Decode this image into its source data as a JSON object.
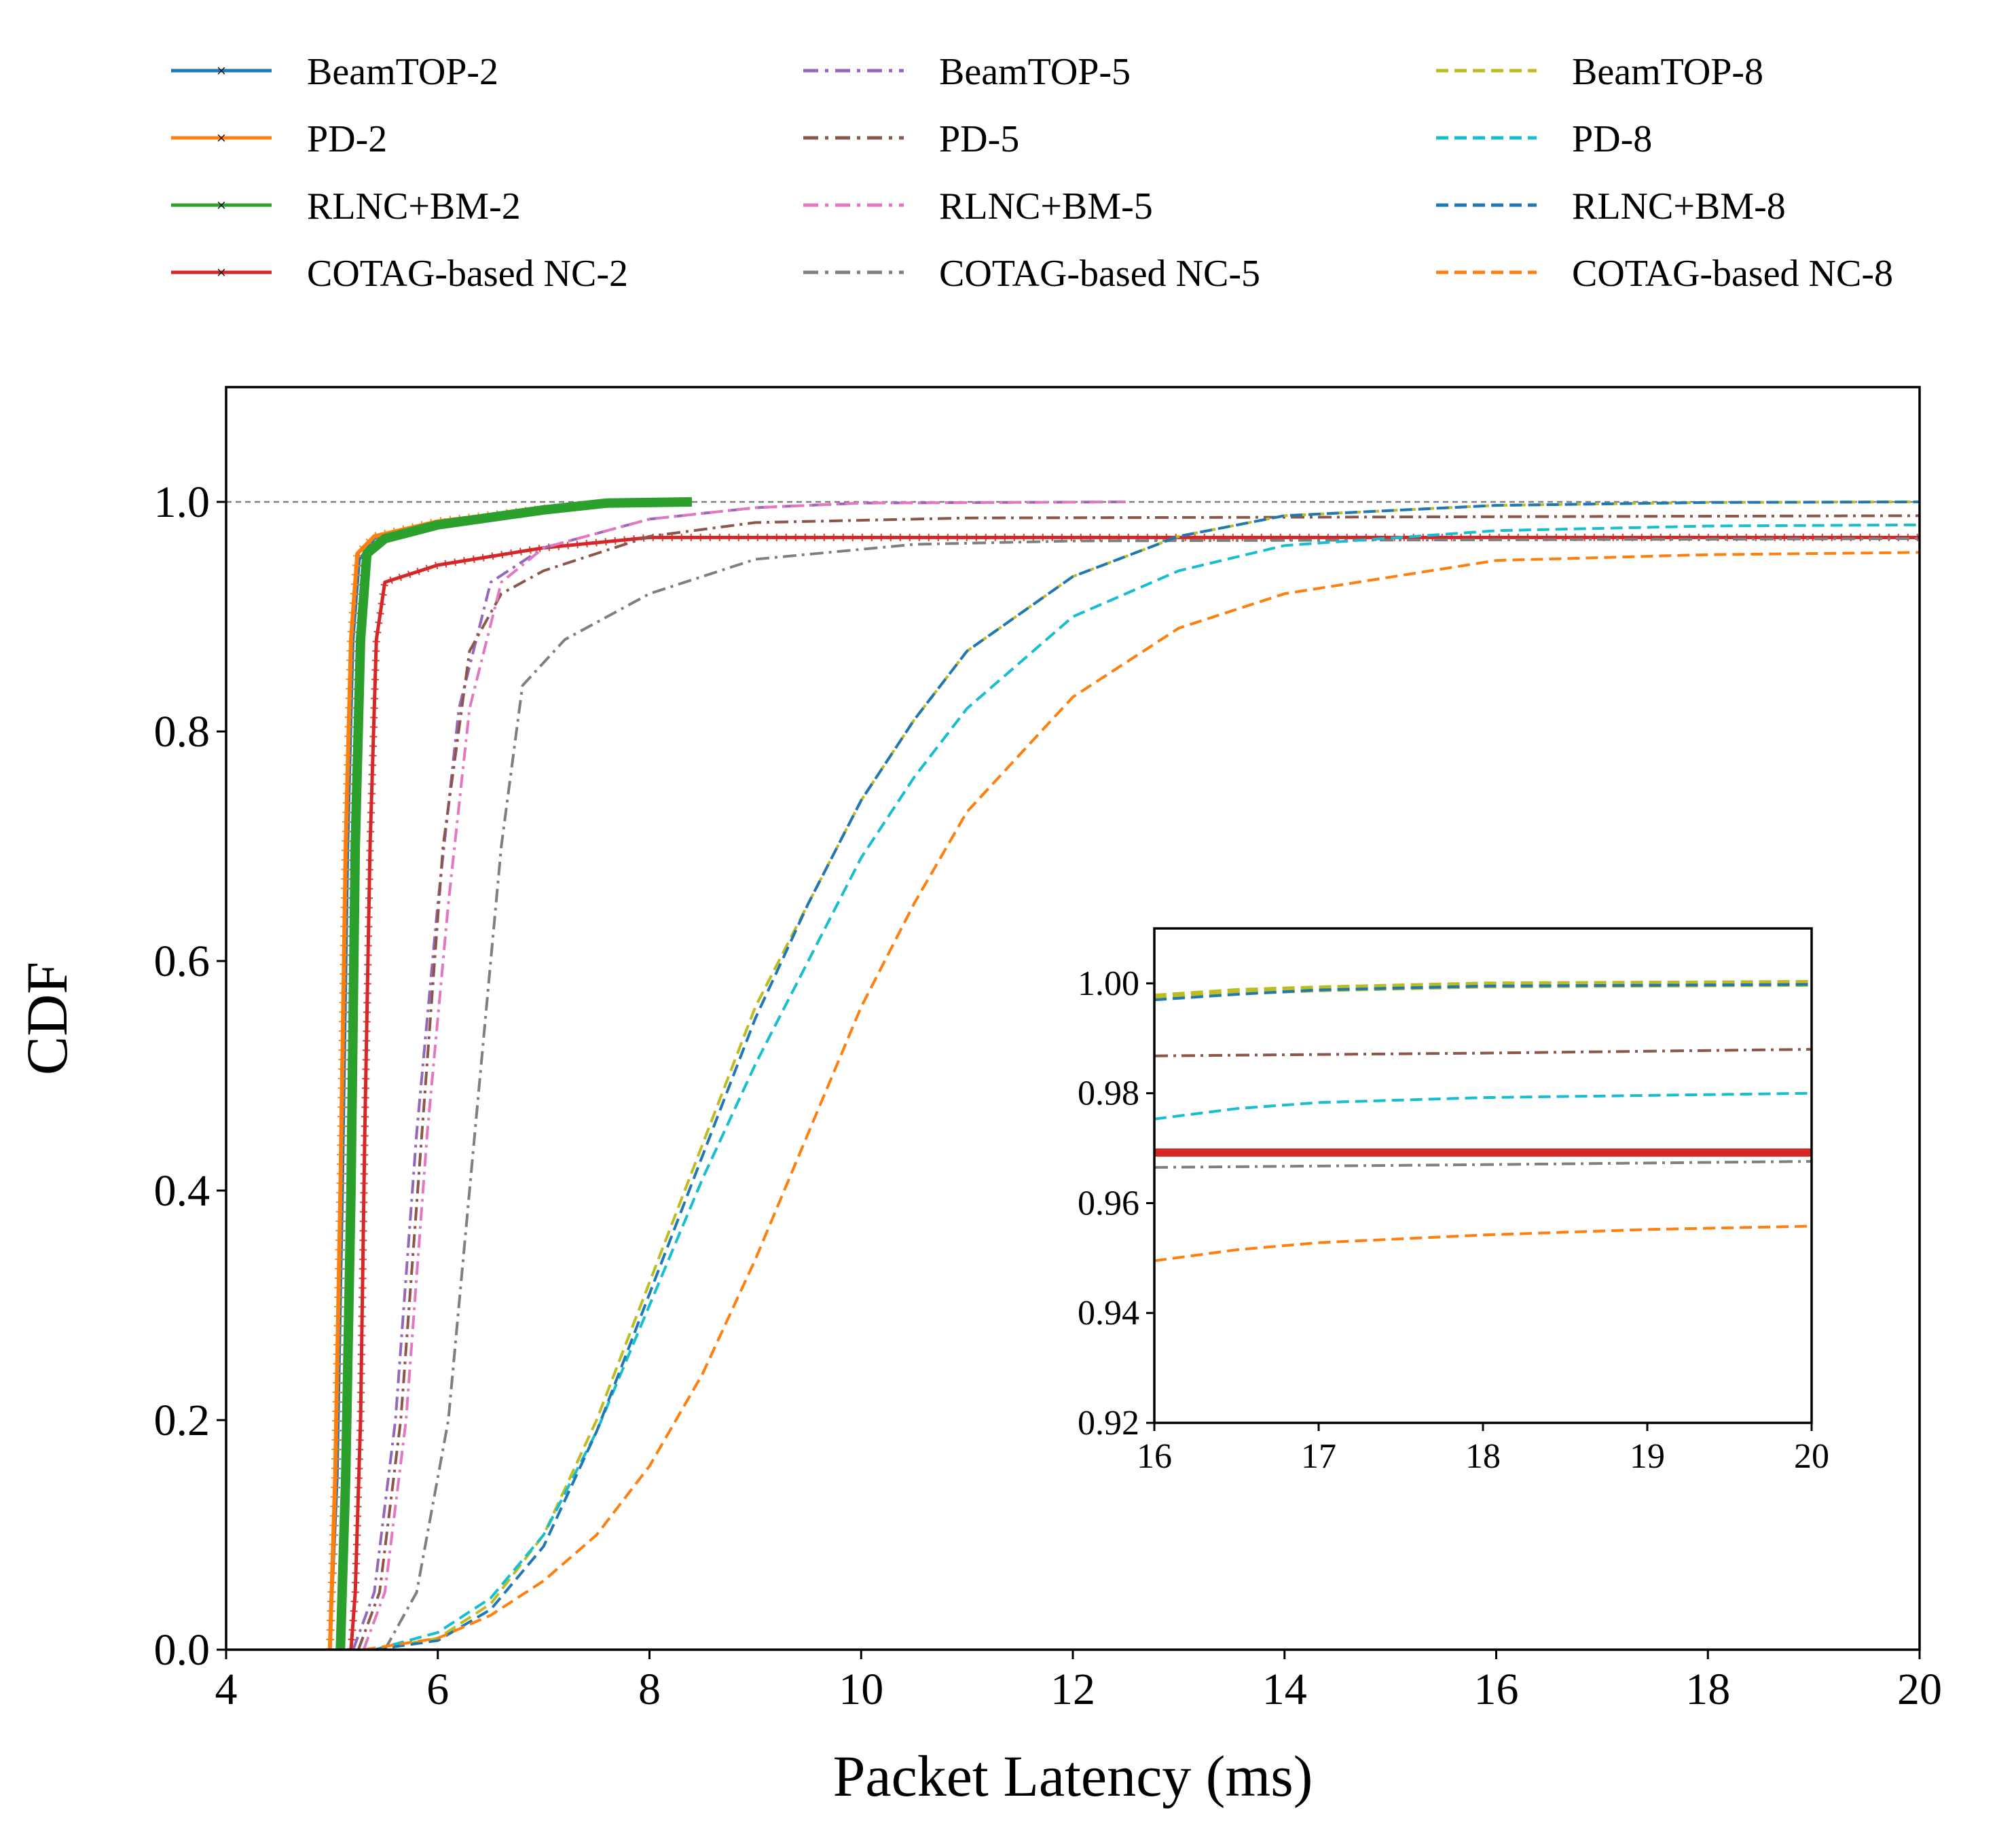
{
  "chart_data": [
    {
      "type": "line",
      "title": "",
      "xlabel": "Packet Latency (ms)",
      "ylabel": "CDF",
      "xlim": [
        4,
        20
      ],
      "ylim": [
        0,
        1.1
      ],
      "xticks": [
        4,
        6,
        8,
        10,
        12,
        14,
        16,
        18,
        20
      ],
      "yticks": [
        0.0,
        0.2,
        0.4,
        0.6,
        0.8,
        1.0
      ],
      "reference_line": {
        "y": 1.0,
        "style": "dashed",
        "color": "#808080"
      },
      "grid": false,
      "legend_position": "top, above plot, 3 columns",
      "series": [
        {
          "name": "BeamTOP-2",
          "color": "#1f77b4",
          "style": "solid-marker",
          "width": 4,
          "points": [
            [
              4.98,
              0
            ],
            [
              5.05,
              0.15
            ],
            [
              5.1,
              0.4
            ],
            [
              5.15,
              0.7
            ],
            [
              5.2,
              0.88
            ],
            [
              5.26,
              0.95
            ],
            [
              5.4,
              0.968
            ],
            [
              6,
              0.982
            ],
            [
              7,
              0.993
            ],
            [
              7.6,
              0.999
            ],
            [
              8.4,
              1.0
            ]
          ]
        },
        {
          "name": "PD-2",
          "color": "#ff7f0e",
          "style": "solid-marker",
          "width": 6,
          "points": [
            [
              4.98,
              0
            ],
            [
              5.03,
              0.15
            ],
            [
              5.08,
              0.4
            ],
            [
              5.13,
              0.7
            ],
            [
              5.18,
              0.88
            ],
            [
              5.24,
              0.955
            ],
            [
              5.4,
              0.97
            ],
            [
              6,
              0.983
            ],
            [
              7,
              0.994
            ],
            [
              7.6,
              0.999
            ],
            [
              8.4,
              1.0
            ]
          ]
        },
        {
          "name": "RLNC+BM-2",
          "color": "#2ca02c",
          "style": "solid-marker",
          "width": 14,
          "points": [
            [
              5.08,
              0
            ],
            [
              5.13,
              0.15
            ],
            [
              5.18,
              0.4
            ],
            [
              5.22,
              0.7
            ],
            [
              5.27,
              0.88
            ],
            [
              5.33,
              0.955
            ],
            [
              5.5,
              0.968
            ],
            [
              6,
              0.98
            ],
            [
              7,
              0.993
            ],
            [
              7.6,
              0.999
            ],
            [
              8.4,
              1.0
            ]
          ]
        },
        {
          "name": "COTAG-based NC-2",
          "color": "#d62728",
          "style": "solid-marker",
          "width": 5,
          "points": [
            [
              5.18,
              0
            ],
            [
              5.22,
              0.05
            ],
            [
              5.27,
              0.2
            ],
            [
              5.31,
              0.45
            ],
            [
              5.36,
              0.7
            ],
            [
              5.42,
              0.88
            ],
            [
              5.5,
              0.93
            ],
            [
              6,
              0.945
            ],
            [
              7,
              0.96
            ],
            [
              8,
              0.969
            ],
            [
              20,
              0.969
            ]
          ]
        },
        {
          "name": "BeamTOP-5",
          "color": "#9467bd",
          "style": "dashdot",
          "width": 4,
          "points": [
            [
              5.2,
              0
            ],
            [
              5.4,
              0.05
            ],
            [
              5.6,
              0.2
            ],
            [
              5.8,
              0.45
            ],
            [
              6.0,
              0.65
            ],
            [
              6.2,
              0.82
            ],
            [
              6.5,
              0.93
            ],
            [
              7,
              0.96
            ],
            [
              8,
              0.985
            ],
            [
              9,
              0.995
            ],
            [
              10,
              0.999
            ],
            [
              12.5,
              1.0
            ]
          ]
        },
        {
          "name": "PD-5",
          "color": "#8c564b",
          "style": "dashdot",
          "width": 4,
          "points": [
            [
              5.25,
              0
            ],
            [
              5.45,
              0.05
            ],
            [
              5.65,
              0.2
            ],
            [
              5.85,
              0.45
            ],
            [
              6.05,
              0.7
            ],
            [
              6.3,
              0.87
            ],
            [
              6.6,
              0.92
            ],
            [
              7,
              0.94
            ],
            [
              8,
              0.97
            ],
            [
              9,
              0.982
            ],
            [
              11,
              0.986
            ],
            [
              20,
              0.988
            ]
          ]
        },
        {
          "name": "RLNC+BM-5",
          "color": "#e377c2",
          "style": "dashdot",
          "width": 4,
          "points": [
            [
              5.3,
              0
            ],
            [
              5.5,
              0.05
            ],
            [
              5.7,
              0.2
            ],
            [
              5.9,
              0.45
            ],
            [
              6.1,
              0.65
            ],
            [
              6.3,
              0.82
            ],
            [
              6.6,
              0.93
            ],
            [
              7,
              0.96
            ],
            [
              8,
              0.985
            ],
            [
              9,
              0.995
            ],
            [
              10,
              0.999
            ],
            [
              12.5,
              1.0
            ]
          ]
        },
        {
          "name": "COTAG-based NC-5",
          "color": "#7f7f7f",
          "style": "dashdot",
          "width": 4,
          "points": [
            [
              5.5,
              0
            ],
            [
              5.8,
              0.05
            ],
            [
              6.1,
              0.2
            ],
            [
              6.35,
              0.45
            ],
            [
              6.6,
              0.7
            ],
            [
              6.8,
              0.84
            ],
            [
              7.2,
              0.88
            ],
            [
              8,
              0.92
            ],
            [
              9,
              0.95
            ],
            [
              10.5,
              0.963
            ],
            [
              12,
              0.966
            ],
            [
              20,
              0.968
            ]
          ]
        },
        {
          "name": "BeamTOP-8",
          "color": "#bcbd22",
          "style": "dashed",
          "width": 4,
          "points": [
            [
              5.4,
              0
            ],
            [
              6,
              0.01
            ],
            [
              6.5,
              0.04
            ],
            [
              7,
              0.1
            ],
            [
              7.5,
              0.2
            ],
            [
              8,
              0.32
            ],
            [
              8.5,
              0.44
            ],
            [
              9,
              0.56
            ],
            [
              9.5,
              0.65
            ],
            [
              10,
              0.74
            ],
            [
              10.5,
              0.81
            ],
            [
              11,
              0.87
            ],
            [
              12,
              0.935
            ],
            [
              13,
              0.97
            ],
            [
              14,
              0.988
            ],
            [
              16,
              0.997
            ],
            [
              18,
              0.9995
            ],
            [
              20,
              1.0
            ]
          ]
        },
        {
          "name": "PD-8",
          "color": "#17becf",
          "style": "dashed",
          "width": 4,
          "points": [
            [
              5.4,
              0
            ],
            [
              6,
              0.015
            ],
            [
              6.5,
              0.045
            ],
            [
              7,
              0.1
            ],
            [
              7.5,
              0.19
            ],
            [
              8,
              0.3
            ],
            [
              8.5,
              0.41
            ],
            [
              9,
              0.51
            ],
            [
              9.5,
              0.6
            ],
            [
              10,
              0.69
            ],
            [
              10.5,
              0.76
            ],
            [
              11,
              0.82
            ],
            [
              12,
              0.9
            ],
            [
              13,
              0.94
            ],
            [
              14,
              0.962
            ],
            [
              16,
              0.975
            ],
            [
              18,
              0.979
            ],
            [
              20,
              0.98
            ]
          ]
        },
        {
          "name": "RLNC+BM-8",
          "color": "#1f77b4",
          "style": "dashed",
          "width": 4,
          "points": [
            [
              5.4,
              0
            ],
            [
              6,
              0.008
            ],
            [
              6.5,
              0.035
            ],
            [
              7,
              0.09
            ],
            [
              7.5,
              0.19
            ],
            [
              8,
              0.31
            ],
            [
              8.5,
              0.43
            ],
            [
              9,
              0.55
            ],
            [
              9.5,
              0.65
            ],
            [
              10,
              0.74
            ],
            [
              10.5,
              0.81
            ],
            [
              11,
              0.87
            ],
            [
              12,
              0.935
            ],
            [
              13,
              0.97
            ],
            [
              14,
              0.988
            ],
            [
              16,
              0.997
            ],
            [
              18,
              0.9995
            ],
            [
              20,
              1.0
            ]
          ]
        },
        {
          "name": "COTAG-based NC-8",
          "color": "#ff7f0e",
          "style": "dashed",
          "width": 4,
          "points": [
            [
              5.3,
              0
            ],
            [
              6,
              0.01
            ],
            [
              6.5,
              0.03
            ],
            [
              7,
              0.06
            ],
            [
              7.5,
              0.1
            ],
            [
              8,
              0.16
            ],
            [
              8.5,
              0.24
            ],
            [
              9,
              0.34
            ],
            [
              9.5,
              0.45
            ],
            [
              10,
              0.56
            ],
            [
              10.5,
              0.65
            ],
            [
              11,
              0.73
            ],
            [
              12,
              0.83
            ],
            [
              13,
              0.89
            ],
            [
              14,
              0.92
            ],
            [
              16,
              0.949
            ],
            [
              18,
              0.954
            ],
            [
              20,
              0.956
            ]
          ]
        }
      ]
    },
    {
      "type": "line",
      "title": "",
      "xlabel": "",
      "ylabel": "",
      "xlim": [
        16,
        20
      ],
      "ylim": [
        0.92,
        1.01
      ],
      "xticks": [
        16,
        17,
        18,
        19,
        20
      ],
      "yticks": [
        0.92,
        0.94,
        0.96,
        0.98,
        1.0
      ],
      "ytick_labels": [
        "0.92",
        "0.94",
        "0.96",
        "0.98",
        "1.00"
      ],
      "grid": false,
      "series": [
        {
          "name": "BeamTOP-8",
          "color": "#bcbd22",
          "style": "dashed",
          "width": 10,
          "points": [
            [
              16,
              0.9975
            ],
            [
              16.5,
              0.9985
            ],
            [
              17,
              0.999
            ],
            [
              18,
              0.9997
            ],
            [
              20,
              1.0
            ]
          ]
        },
        {
          "name": "RLNC+BM-8",
          "color": "#1f77b4",
          "style": "dashed",
          "width": 4,
          "points": [
            [
              16,
              0.997
            ],
            [
              16.5,
              0.998
            ],
            [
              17,
              0.9988
            ],
            [
              18,
              0.9995
            ],
            [
              20,
              0.9998
            ]
          ]
        },
        {
          "name": "PD-5",
          "color": "#8c564b",
          "style": "dashdot",
          "width": 4,
          "points": [
            [
              16,
              0.9868
            ],
            [
              18,
              0.9873
            ],
            [
              20,
              0.988
            ]
          ]
        },
        {
          "name": "PD-8",
          "color": "#17becf",
          "style": "dashed",
          "width": 4,
          "points": [
            [
              16,
              0.9753
            ],
            [
              16.5,
              0.9772
            ],
            [
              17,
              0.9783
            ],
            [
              18,
              0.9792
            ],
            [
              19,
              0.9796
            ],
            [
              20,
              0.98
            ]
          ]
        },
        {
          "name": "COTAG-based NC-2",
          "color": "#d62728",
          "style": "solid-marker",
          "width": 12,
          "points": [
            [
              16,
              0.9692
            ],
            [
              20,
              0.9692
            ]
          ]
        },
        {
          "name": "COTAG-based NC-5",
          "color": "#7f7f7f",
          "style": "dashdot",
          "width": 4,
          "points": [
            [
              16,
              0.9665
            ],
            [
              18,
              0.967
            ],
            [
              20,
              0.9676
            ]
          ]
        },
        {
          "name": "COTAG-based NC-8",
          "color": "#ff7f0e",
          "style": "dashed",
          "width": 4,
          "points": [
            [
              16,
              0.9495
            ],
            [
              16.5,
              0.9515
            ],
            [
              17,
              0.9528
            ],
            [
              18,
              0.9542
            ],
            [
              19,
              0.9552
            ],
            [
              20,
              0.9558
            ]
          ]
        }
      ]
    }
  ]
}
